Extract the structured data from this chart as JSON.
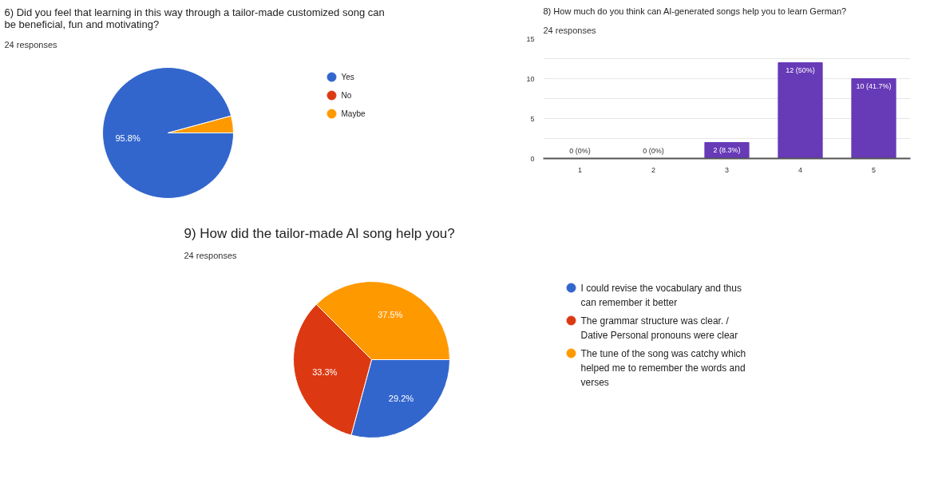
{
  "chart_data": [
    {
      "type": "pie",
      "title": "6) Did you feel that learning in this way through a tailor-made customized song can be beneficial, fun and motivating?",
      "subtitle": "24 responses",
      "categories": [
        "Yes",
        "No",
        "Maybe"
      ],
      "values": [
        95.8,
        0,
        4.2
      ],
      "colors": [
        "#3366cc",
        "#dc3912",
        "#ff9900"
      ],
      "value_labels": [
        "95.8%",
        null,
        null
      ],
      "legend": "right"
    },
    {
      "type": "bar",
      "title": "8) How much do you think can AI-generated songs help you to learn German?",
      "subtitle": "24 responses",
      "categories": [
        "1",
        "2",
        "3",
        "4",
        "5"
      ],
      "values": [
        0,
        0,
        2,
        12,
        10
      ],
      "color": "#673ab7",
      "value_labels": [
        "0 (0%)",
        "0 (0%)",
        "2 (8.3%)",
        "12 (50%)",
        "10 (41.7%)"
      ],
      "ylim": [
        0,
        15
      ],
      "yticks": [
        0,
        {
          "value": 2.5,
          "label": null
        },
        5,
        {
          "value": 7.5,
          "label": null
        },
        10,
        {
          "value": 12.5,
          "label": null
        },
        15
      ],
      "grid": "y"
    },
    {
      "type": "pie",
      "title": "9) How did the tailor-made AI song help you?",
      "subtitle": "24 responses",
      "categories": [
        "I could revise the vocabulary and thus can remember it better",
        "The grammar structure was clear. / Dative Personal pronouns were clear",
        "The tune of the song was catchy which helped me to remember the words and verses"
      ],
      "values": [
        29.2,
        33.3,
        37.5
      ],
      "colors": [
        "#3366cc",
        "#dc3912",
        "#ff9900"
      ],
      "value_labels": [
        "29.2%",
        "33.3%",
        "37.5%"
      ],
      "legend": "right"
    }
  ]
}
